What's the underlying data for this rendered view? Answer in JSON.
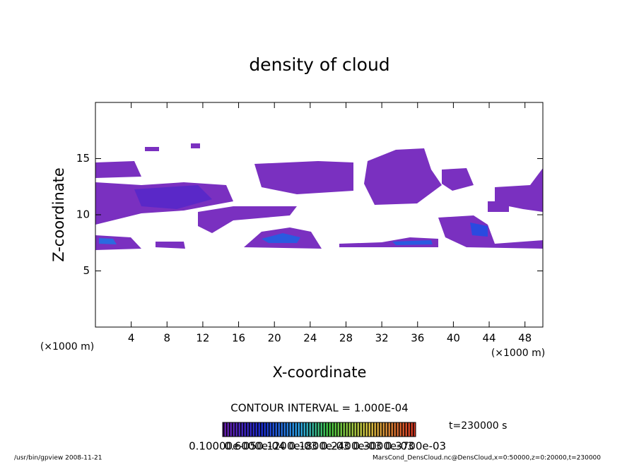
{
  "chart_data": {
    "type": "contour",
    "title": "density of cloud",
    "x_label": "X-coordinate",
    "y_label": "Z-coordinate",
    "x_unit_left": "(×1000 m)",
    "x_unit_right": "(×1000 m)",
    "xlim": [
      0,
      50
    ],
    "ylim": [
      0,
      20
    ],
    "xticks": [
      4,
      8,
      12,
      16,
      20,
      24,
      28,
      32,
      36,
      40,
      44,
      48
    ],
    "yticks": [
      5,
      10,
      15
    ],
    "contour_interval": "CONTOUR INTERVAL = 1.000E-04",
    "time": "t=230000 s",
    "colorbar_labels": [
      "0.10000e-05",
      "0.6000e-04",
      "0.1200e-03",
      "0.1800e-03",
      "0.2400e-03",
      "0.3000e-03",
      "0.3700e-03"
    ],
    "footer_left": "/usr/bin/gpview   2008-11-21",
    "footer_right": "MarsCond_DensCloud.nc@DensCloud,x=0:50000,z=0:20000,t=230000"
  }
}
